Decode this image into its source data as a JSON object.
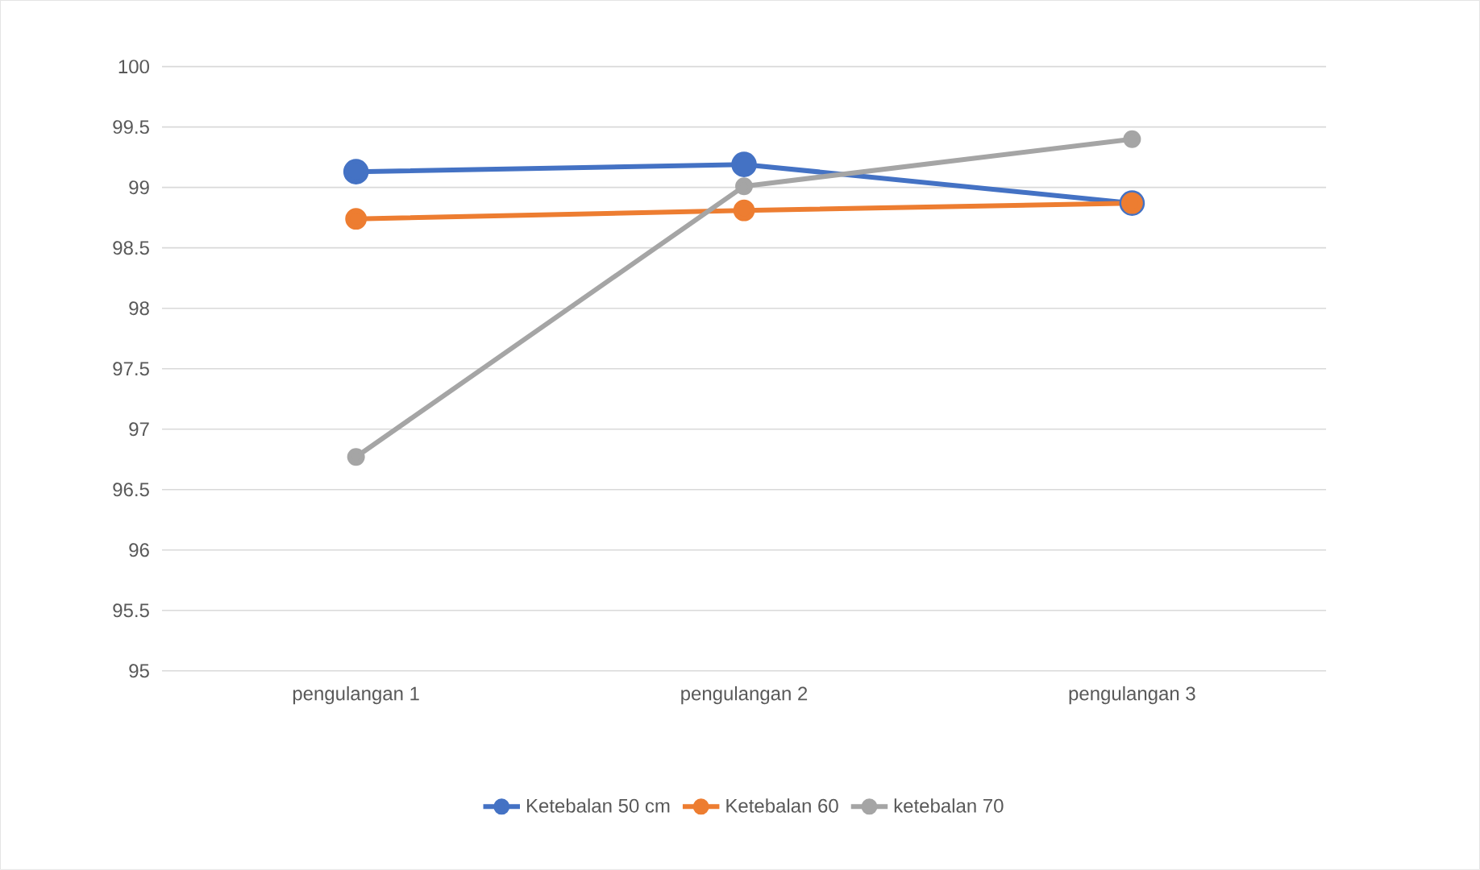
{
  "chart_data": {
    "type": "line",
    "categories": [
      "pengulangan 1",
      "pengulangan 2",
      "pengulangan 3"
    ],
    "series": [
      {
        "name": "Ketebalan 50 cm",
        "color": "#4472c4",
        "values": [
          99.13,
          99.19,
          98.87
        ]
      },
      {
        "name": "Ketebalan 60",
        "color": "#ed7d31",
        "values": [
          98.74,
          98.81,
          98.87
        ]
      },
      {
        "name": "ketebalan 70",
        "color": "#a5a5a5",
        "values": [
          96.77,
          99.01,
          99.4
        ]
      }
    ],
    "ylim": [
      95,
      100
    ],
    "yticks": [
      95,
      95.5,
      96,
      96.5,
      97,
      97.5,
      98,
      98.5,
      99,
      99.5,
      100
    ],
    "grid": "y",
    "legend": "bottom",
    "marker": "circle",
    "line_style": "solid"
  }
}
